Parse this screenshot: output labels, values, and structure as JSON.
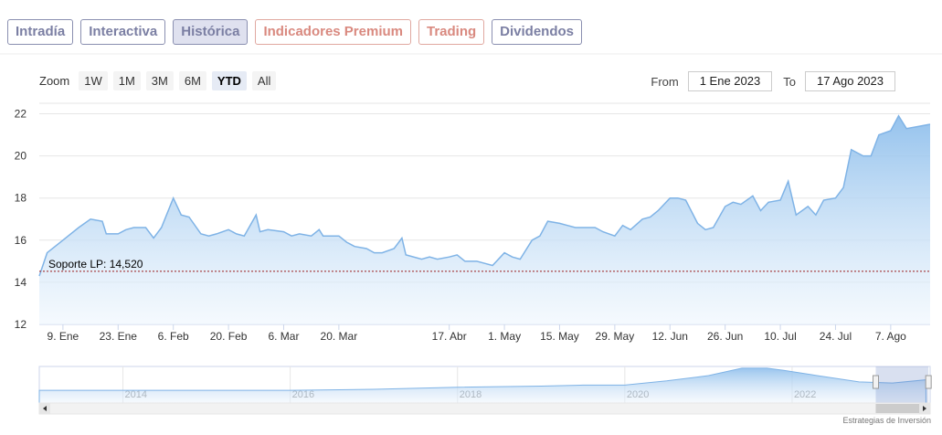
{
  "tabs": [
    {
      "label": "Intradía",
      "active": false,
      "premium": false
    },
    {
      "label": "Interactiva",
      "active": false,
      "premium": false
    },
    {
      "label": "Histórica",
      "active": true,
      "premium": false
    },
    {
      "label": "Indicadores Premium",
      "active": false,
      "premium": true
    },
    {
      "label": "Trading",
      "active": false,
      "premium": true
    },
    {
      "label": "Dividendos",
      "active": false,
      "premium": false
    }
  ],
  "zoom": {
    "label": "Zoom",
    "buttons": [
      "1W",
      "1M",
      "3M",
      "6M",
      "YTD",
      "All"
    ],
    "selected": "YTD"
  },
  "range": {
    "from_label": "From",
    "from_value": "1 Ene 2023",
    "to_label": "To",
    "to_value": "17 Ago 2023"
  },
  "credits": "Estrategias de Inversión",
  "colors": {
    "line": "#7fb3e6",
    "fill_top": "#8fbfec",
    "fill_bottom": "#eef6fd",
    "support": "#9b1c1c",
    "grid": "#e6e6e6"
  },
  "chart_data": {
    "type": "area",
    "ylim": [
      12,
      22.5
    ],
    "yticks": [
      12,
      14,
      16,
      18,
      20,
      22
    ],
    "grid": true,
    "x_start": "2023-01-03",
    "x_end": "2023-08-17",
    "xticks": [
      {
        "label": "9. Ene",
        "date": "2023-01-09"
      },
      {
        "label": "23. Ene",
        "date": "2023-01-23"
      },
      {
        "label": "6. Feb",
        "date": "2023-02-06"
      },
      {
        "label": "20. Feb",
        "date": "2023-02-20"
      },
      {
        "label": "6. Mar",
        "date": "2023-03-06"
      },
      {
        "label": "20. Mar",
        "date": "2023-03-20"
      },
      {
        "label": "17. Abr",
        "date": "2023-04-17"
      },
      {
        "label": "1. May",
        "date": "2023-05-01"
      },
      {
        "label": "15. May",
        "date": "2023-05-15"
      },
      {
        "label": "29. May",
        "date": "2023-05-29"
      },
      {
        "label": "12. Jun",
        "date": "2023-06-12"
      },
      {
        "label": "26. Jun",
        "date": "2023-06-26"
      },
      {
        "label": "10. Jul",
        "date": "2023-07-10"
      },
      {
        "label": "24. Jul",
        "date": "2023-07-24"
      },
      {
        "label": "7. Ago",
        "date": "2023-08-07"
      }
    ],
    "support": {
      "label": "Soporte LP: 14,520",
      "value": 14.52
    },
    "series": [
      {
        "points": [
          [
            "2023-01-03",
            14.3
          ],
          [
            "2023-01-05",
            15.4
          ],
          [
            "2023-01-09",
            16.0
          ],
          [
            "2023-01-13",
            16.6
          ],
          [
            "2023-01-16",
            17.0
          ],
          [
            "2023-01-19",
            16.9
          ],
          [
            "2023-01-20",
            16.3
          ],
          [
            "2023-01-23",
            16.3
          ],
          [
            "2023-01-25",
            16.5
          ],
          [
            "2023-01-27",
            16.6
          ],
          [
            "2023-01-30",
            16.6
          ],
          [
            "2023-02-01",
            16.1
          ],
          [
            "2023-02-03",
            16.6
          ],
          [
            "2023-02-06",
            18.0
          ],
          [
            "2023-02-08",
            17.2
          ],
          [
            "2023-02-10",
            17.1
          ],
          [
            "2023-02-13",
            16.3
          ],
          [
            "2023-02-15",
            16.2
          ],
          [
            "2023-02-17",
            16.3
          ],
          [
            "2023-02-20",
            16.5
          ],
          [
            "2023-02-22",
            16.3
          ],
          [
            "2023-02-24",
            16.2
          ],
          [
            "2023-02-27",
            17.2
          ],
          [
            "2023-02-28",
            16.4
          ],
          [
            "2023-03-02",
            16.5
          ],
          [
            "2023-03-06",
            16.4
          ],
          [
            "2023-03-08",
            16.2
          ],
          [
            "2023-03-10",
            16.3
          ],
          [
            "2023-03-13",
            16.2
          ],
          [
            "2023-03-15",
            16.5
          ],
          [
            "2023-03-16",
            16.2
          ],
          [
            "2023-03-20",
            16.2
          ],
          [
            "2023-03-22",
            15.9
          ],
          [
            "2023-03-24",
            15.7
          ],
          [
            "2023-03-27",
            15.6
          ],
          [
            "2023-03-29",
            15.4
          ],
          [
            "2023-03-31",
            15.4
          ],
          [
            "2023-04-03",
            15.6
          ],
          [
            "2023-04-05",
            16.1
          ],
          [
            "2023-04-06",
            15.3
          ],
          [
            "2023-04-10",
            15.1
          ],
          [
            "2023-04-12",
            15.2
          ],
          [
            "2023-04-14",
            15.1
          ],
          [
            "2023-04-17",
            15.2
          ],
          [
            "2023-04-19",
            15.3
          ],
          [
            "2023-04-21",
            15.0
          ],
          [
            "2023-04-24",
            15.0
          ],
          [
            "2023-04-26",
            14.9
          ],
          [
            "2023-04-28",
            14.8
          ],
          [
            "2023-05-01",
            15.4
          ],
          [
            "2023-05-03",
            15.2
          ],
          [
            "2023-05-05",
            15.1
          ],
          [
            "2023-05-08",
            16.0
          ],
          [
            "2023-05-10",
            16.2
          ],
          [
            "2023-05-12",
            16.9
          ],
          [
            "2023-05-15",
            16.8
          ],
          [
            "2023-05-17",
            16.7
          ],
          [
            "2023-05-19",
            16.6
          ],
          [
            "2023-05-22",
            16.6
          ],
          [
            "2023-05-24",
            16.6
          ],
          [
            "2023-05-26",
            16.4
          ],
          [
            "2023-05-29",
            16.2
          ],
          [
            "2023-05-31",
            16.7
          ],
          [
            "2023-06-02",
            16.5
          ],
          [
            "2023-06-05",
            17.0
          ],
          [
            "2023-06-07",
            17.1
          ],
          [
            "2023-06-09",
            17.4
          ],
          [
            "2023-06-12",
            18.0
          ],
          [
            "2023-06-14",
            18.0
          ],
          [
            "2023-06-16",
            17.9
          ],
          [
            "2023-06-19",
            16.8
          ],
          [
            "2023-06-21",
            16.5
          ],
          [
            "2023-06-23",
            16.6
          ],
          [
            "2023-06-26",
            17.6
          ],
          [
            "2023-06-28",
            17.8
          ],
          [
            "2023-06-30",
            17.7
          ],
          [
            "2023-07-03",
            18.1
          ],
          [
            "2023-07-05",
            17.4
          ],
          [
            "2023-07-07",
            17.8
          ],
          [
            "2023-07-10",
            17.9
          ],
          [
            "2023-07-12",
            18.8
          ],
          [
            "2023-07-14",
            17.2
          ],
          [
            "2023-07-17",
            17.6
          ],
          [
            "2023-07-19",
            17.2
          ],
          [
            "2023-07-21",
            17.9
          ],
          [
            "2023-07-24",
            18.0
          ],
          [
            "2023-07-26",
            18.5
          ],
          [
            "2023-07-28",
            20.3
          ],
          [
            "2023-07-31",
            20.0
          ],
          [
            "2023-08-02",
            20.0
          ],
          [
            "2023-08-04",
            21.0
          ],
          [
            "2023-08-07",
            21.2
          ],
          [
            "2023-08-09",
            21.9
          ],
          [
            "2023-08-11",
            21.3
          ],
          [
            "2023-08-14",
            21.4
          ],
          [
            "2023-08-17",
            21.5
          ]
        ]
      }
    ],
    "navigator": {
      "labels": [
        "2014",
        "2016",
        "2018",
        "2020",
        "2022"
      ],
      "series": [
        [
          2013.0,
          12
        ],
        [
          2014.0,
          12
        ],
        [
          2015.0,
          12
        ],
        [
          2016.0,
          12
        ],
        [
          2017.0,
          13
        ],
        [
          2018.0,
          15
        ],
        [
          2019.0,
          16
        ],
        [
          2019.5,
          17
        ],
        [
          2020.0,
          17
        ],
        [
          2020.5,
          21
        ],
        [
          2021.0,
          26
        ],
        [
          2021.4,
          33
        ],
        [
          2021.7,
          33
        ],
        [
          2021.9,
          31
        ],
        [
          2022.3,
          26
        ],
        [
          2022.8,
          20
        ],
        [
          2023.2,
          19
        ],
        [
          2023.6,
          22
        ]
      ],
      "range": [
        2013.0,
        2023.65
      ],
      "selection": [
        2023.0,
        2023.63
      ]
    }
  }
}
